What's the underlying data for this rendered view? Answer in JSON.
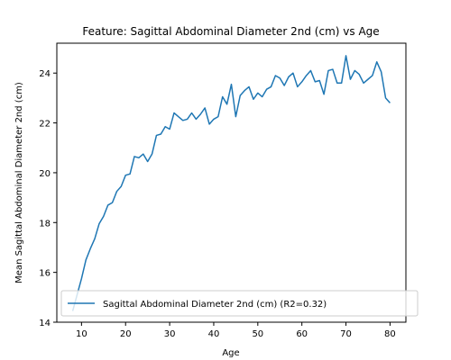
{
  "chart_data": {
    "type": "line",
    "title": "Feature: Sagittal Abdominal Diameter 2nd (cm) vs Age",
    "xlabel": "Age",
    "ylabel": "Mean Sagittal Abdominal Diameter 2nd (cm)",
    "xlim": [
      4.4,
      83.6
    ],
    "ylim": [
      14.0,
      25.2
    ],
    "xticks": [
      10,
      20,
      30,
      40,
      50,
      60,
      70,
      80
    ],
    "yticks": [
      14,
      16,
      18,
      20,
      22,
      24
    ],
    "grid": false,
    "legend_position": "lower-left",
    "series": [
      {
        "name": "Sagittal Abdominal Diameter 2nd (cm) (R2=0.32)",
        "color": "#1f77b4",
        "x": [
          8,
          9,
          10,
          11,
          12,
          13,
          14,
          15,
          16,
          17,
          18,
          19,
          20,
          21,
          22,
          23,
          24,
          25,
          26,
          27,
          28,
          29,
          30,
          31,
          32,
          33,
          34,
          35,
          36,
          37,
          38,
          39,
          40,
          41,
          42,
          43,
          44,
          45,
          46,
          47,
          48,
          49,
          50,
          51,
          52,
          53,
          54,
          55,
          56,
          57,
          58,
          59,
          60,
          61,
          62,
          63,
          64,
          65,
          66,
          67,
          68,
          69,
          70,
          71,
          72,
          73,
          74,
          75,
          76,
          77,
          78,
          79,
          80
        ],
        "y": [
          14.45,
          15.1,
          15.75,
          16.5,
          16.95,
          17.35,
          17.95,
          18.25,
          18.7,
          18.8,
          19.25,
          19.45,
          19.9,
          19.95,
          20.65,
          20.6,
          20.75,
          20.45,
          20.75,
          21.5,
          21.55,
          21.85,
          21.75,
          22.4,
          22.25,
          22.1,
          22.15,
          22.4,
          22.15,
          22.35,
          22.6,
          21.95,
          22.15,
          22.25,
          23.05,
          22.75,
          23.55,
          22.25,
          23.1,
          23.3,
          23.45,
          22.95,
          23.2,
          23.05,
          23.35,
          23.45,
          23.9,
          23.8,
          23.5,
          23.85,
          24.0,
          23.45,
          23.65,
          23.9,
          24.1,
          23.65,
          23.7,
          23.15,
          24.1,
          24.15,
          23.6,
          23.6,
          24.7,
          23.75,
          24.1,
          23.95,
          23.6,
          23.75,
          23.9,
          24.45,
          24.05,
          23.0,
          22.8
        ]
      }
    ]
  }
}
